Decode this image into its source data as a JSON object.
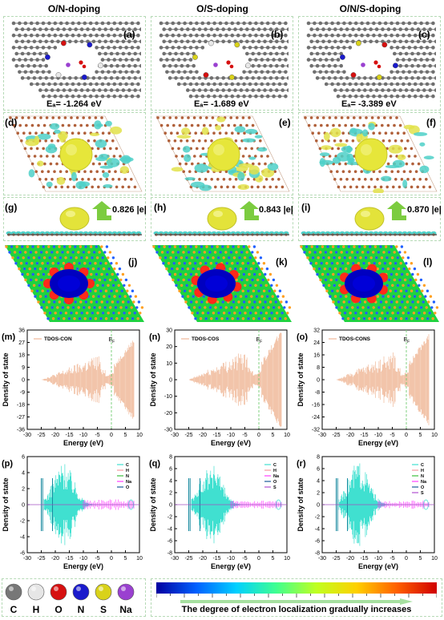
{
  "columns": [
    {
      "title": "O/N-doping",
      "top_label": "(a)",
      "energy": "Eₐ= -1.264 eV",
      "diff_label": "(d)",
      "side_label": "(g)",
      "charge": "0.826 |e|",
      "elf_label": "(j)",
      "tdos_label": "(m)",
      "tdos_legend": "TDOS-CON",
      "pdos_label": "(p)"
    },
    {
      "title": "O/S-doping",
      "top_label": "(b)",
      "energy": "Eₐ= -1.689 eV",
      "diff_label": "(e)",
      "side_label": "(h)",
      "charge": "0.843 |e|",
      "elf_label": "(k)",
      "tdos_label": "(n)",
      "tdos_legend": "TDOS-COS",
      "pdos_label": "(q)"
    },
    {
      "title": "O/N/S-doping",
      "top_label": "(c)",
      "energy": "Eₐ= -3.389 eV",
      "diff_label": "(f)",
      "side_label": "(i)",
      "charge": "0.870 |e|",
      "elf_label": "(l)",
      "tdos_label": "(o)",
      "tdos_legend": "TDOS-CONS",
      "pdos_label": "(r)"
    }
  ],
  "tdos_axis": {
    "ylabel": "Density of state",
    "xlabel": "Energy (eV)",
    "ef": "E_F"
  },
  "pdos_axis": {
    "ylabel": "Density of state",
    "xlabel": "Energy (eV)"
  },
  "legend_atoms": [
    {
      "label": "C",
      "color": "#777777"
    },
    {
      "label": "H",
      "color": "#e6e6e6"
    },
    {
      "label": "O",
      "color": "#d61010"
    },
    {
      "label": "N",
      "color": "#1a1acc"
    },
    {
      "label": "S",
      "color": "#d9d21a"
    },
    {
      "label": "Na",
      "color": "#9a40d0"
    }
  ],
  "colorbar_caption": "The degree of electron localization gradually increases",
  "chart_data": [
    {
      "type": "line",
      "title": "",
      "series": [
        {
          "name": "TDOS-CON"
        }
      ],
      "xlabel": "Energy (eV)",
      "ylabel": "Density of state",
      "xlim": [
        -30,
        10
      ],
      "xticks": [
        -30,
        -25,
        -20,
        -15,
        -10,
        -5,
        0,
        5,
        10
      ],
      "ylim": [
        -36,
        36
      ],
      "yticks": [
        -36,
        -27,
        -18,
        -9,
        0,
        9,
        18,
        27,
        36
      ]
    },
    {
      "type": "line",
      "title": "",
      "series": [
        {
          "name": "TDOS-COS"
        }
      ],
      "xlabel": "Energy (eV)",
      "ylabel": "Density of state",
      "xlim": [
        -30,
        10
      ],
      "xticks": [
        -30,
        -25,
        -20,
        -15,
        -10,
        -5,
        0,
        5,
        10
      ],
      "ylim": [
        -30,
        30
      ],
      "yticks": [
        -30,
        -20,
        -10,
        0,
        10,
        20,
        30
      ]
    },
    {
      "type": "line",
      "title": "",
      "series": [
        {
          "name": "TDOS-CONS"
        }
      ],
      "xlabel": "Energy (eV)",
      "ylabel": "Density of state",
      "xlim": [
        -30,
        10
      ],
      "xticks": [
        -30,
        -25,
        -20,
        -15,
        -10,
        -5,
        0,
        5,
        10
      ],
      "ylim": [
        -32,
        32
      ],
      "yticks": [
        -32,
        -24,
        -16,
        -8,
        0,
        8,
        16,
        24,
        32
      ]
    },
    {
      "type": "line",
      "title": "",
      "series": [
        {
          "name": "C"
        },
        {
          "name": "H"
        },
        {
          "name": "N"
        },
        {
          "name": "Na"
        },
        {
          "name": "O"
        }
      ],
      "xlabel": "Energy (eV)",
      "ylabel": "Density of state",
      "xlim": [
        -30,
        10
      ],
      "xticks": [
        -30,
        -25,
        -20,
        -15,
        -10,
        -5,
        0,
        5,
        10
      ],
      "ylim": [
        -6,
        6
      ],
      "yticks": [
        -6,
        -4,
        -2,
        0,
        2,
        4,
        6
      ]
    },
    {
      "type": "line",
      "title": "",
      "series": [
        {
          "name": "C"
        },
        {
          "name": "H"
        },
        {
          "name": "Na"
        },
        {
          "name": "O"
        },
        {
          "name": "S"
        }
      ],
      "xlabel": "Energy (eV)",
      "ylabel": "Density of state",
      "xlim": [
        -30,
        10
      ],
      "xticks": [
        -30,
        -25,
        -20,
        -15,
        -10,
        -5,
        0,
        5,
        10
      ],
      "ylim": [
        -8,
        8
      ],
      "yticks": [
        -8,
        -6,
        -4,
        -2,
        0,
        2,
        4,
        6,
        8
      ]
    },
    {
      "type": "line",
      "title": "",
      "series": [
        {
          "name": "C"
        },
        {
          "name": "H"
        },
        {
          "name": "N"
        },
        {
          "name": "Na"
        },
        {
          "name": "O"
        },
        {
          "name": "S"
        }
      ],
      "xlabel": "Energy (eV)",
      "ylabel": "Density of state",
      "xlim": [
        -30,
        10
      ],
      "xticks": [
        -30,
        -25,
        -20,
        -15,
        -10,
        -5,
        0,
        5,
        10
      ],
      "ylim": [
        -8,
        8
      ],
      "yticks": [
        -8,
        -6,
        -4,
        -2,
        0,
        2,
        4,
        6,
        8
      ]
    }
  ],
  "colors": {
    "tdos": "#f0b898",
    "C": "#40e0d0",
    "H": "#f49aa0",
    "N": "#3bbf3b",
    "Na": "#ff40ff",
    "O": "#1a5a9a",
    "S": "#b050d0",
    "ef_line": "#80d080"
  }
}
